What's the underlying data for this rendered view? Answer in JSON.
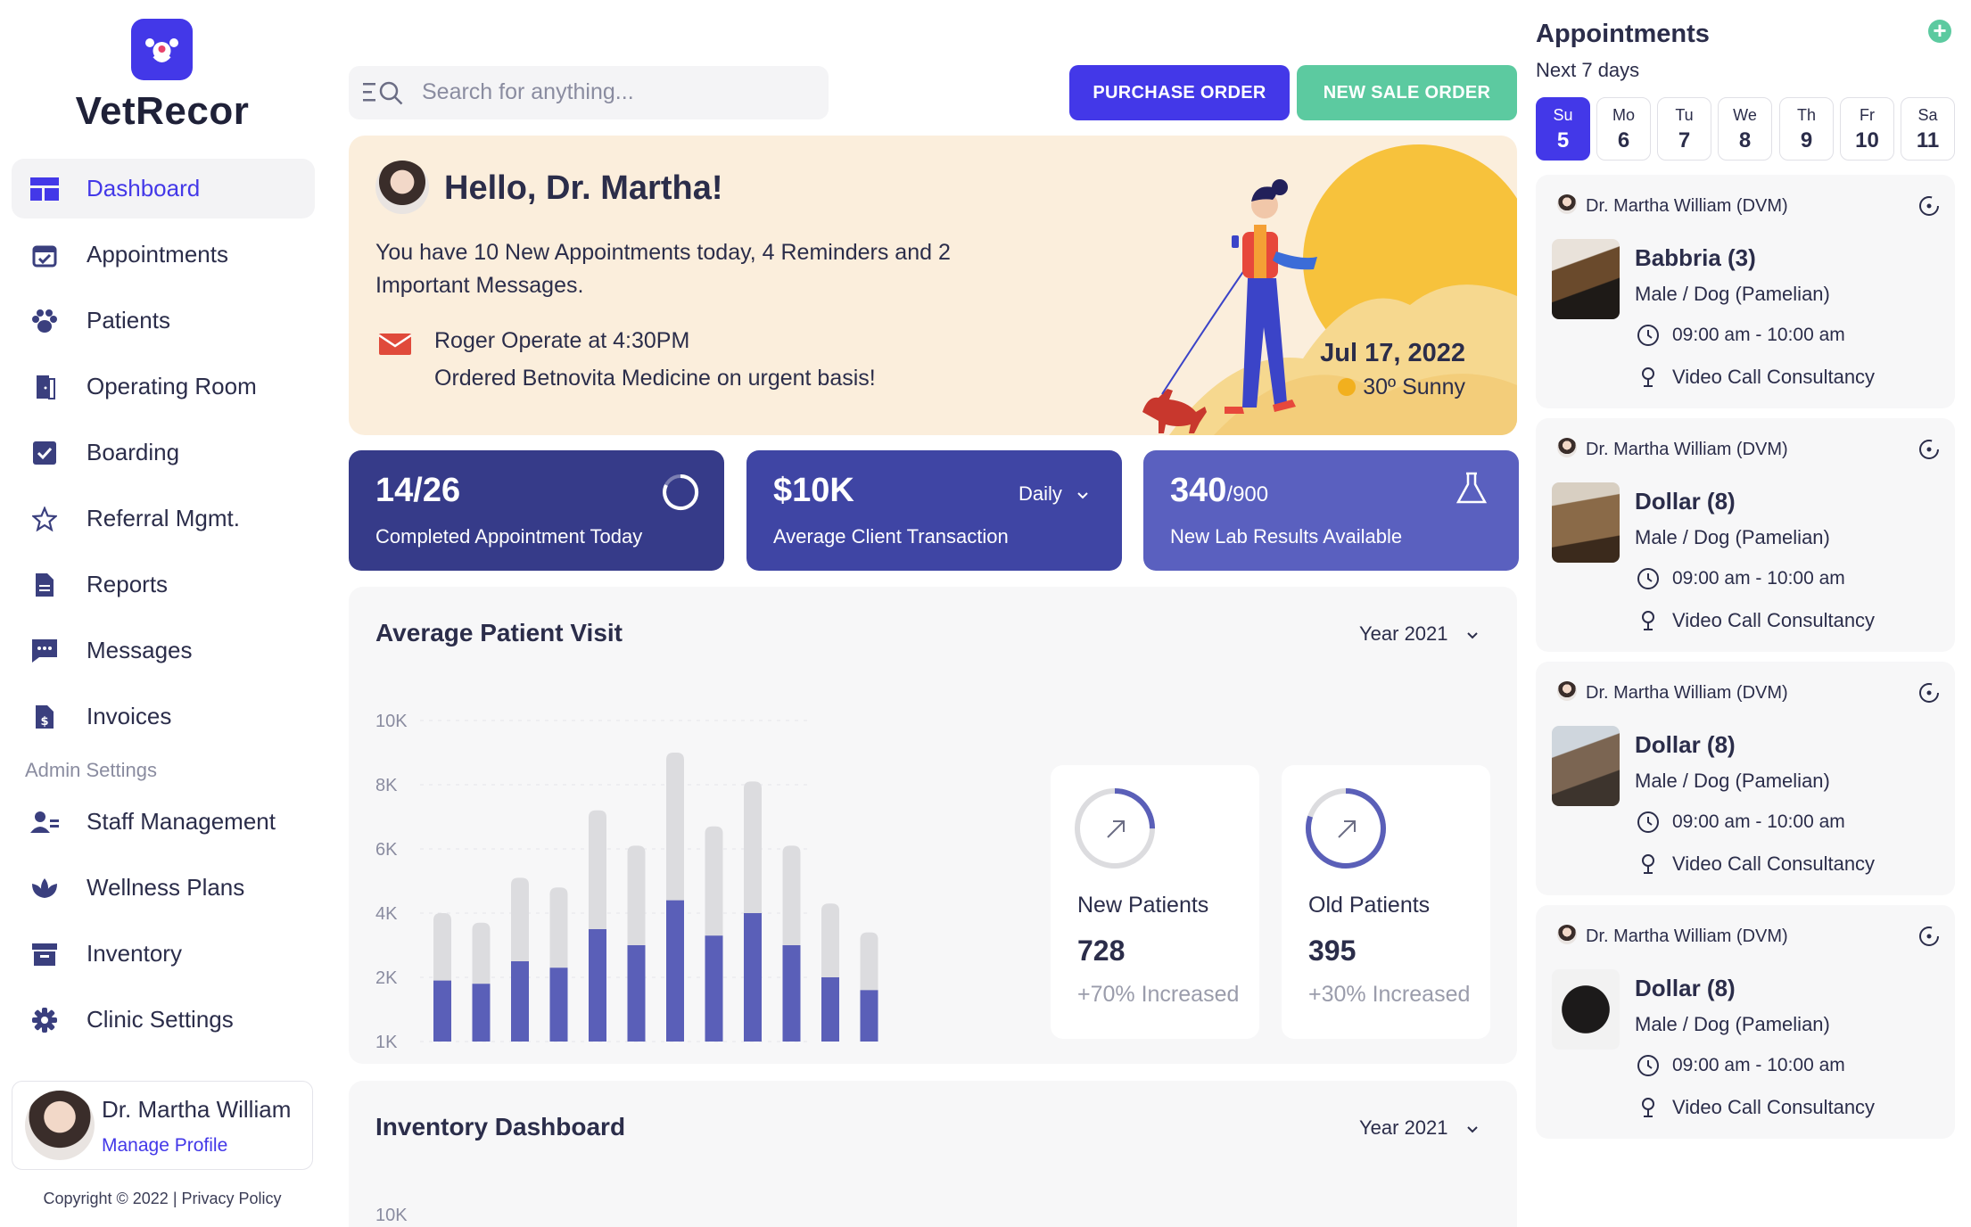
{
  "app": {
    "brand": "VetRecor"
  },
  "sidebar": {
    "items": [
      {
        "label": "Dashboard",
        "icon": "dashboard-icon",
        "active": true
      },
      {
        "label": "Appointments",
        "icon": "calendar-check-icon"
      },
      {
        "label": "Patients",
        "icon": "paw-icon"
      },
      {
        "label": "Operating Room",
        "icon": "door-icon"
      },
      {
        "label": "Boarding",
        "icon": "checkbox-icon"
      },
      {
        "label": "Referral Mgmt.",
        "icon": "star-icon"
      }
    ],
    "items2": [
      {
        "label": "Reports",
        "icon": "document-icon"
      },
      {
        "label": "Messages",
        "icon": "chat-icon"
      },
      {
        "label": "Invoices",
        "icon": "invoice-icon"
      }
    ],
    "admin_title": "Admin Settings",
    "admin_items": [
      {
        "label": "Staff Management",
        "icon": "staff-icon"
      },
      {
        "label": "Wellness Plans",
        "icon": "lotus-icon"
      },
      {
        "label": "Inventory",
        "icon": "archive-icon"
      },
      {
        "label": "Clinic Settings",
        "icon": "gear-icon"
      }
    ],
    "profile": {
      "name": "Dr. Martha William",
      "link": "Manage Profile"
    },
    "copyright": "Copyright © 2022 | Privacy Policy"
  },
  "topbar": {
    "search_placeholder": "Search for anything...",
    "purchase_label": "PURCHASE ORDER",
    "sale_label": "NEW SALE ORDER"
  },
  "hello": {
    "title": "Hello, Dr. Martha!",
    "message": "You have 10 New Appointments today, 4 Reminders and 2 Important Messages.",
    "line1": "Roger Operate at 4:30PM",
    "line2": "Ordered Betnovita Medicine on urgent basis!",
    "date": "Jul 17, 2022",
    "weather": "30º Sunny"
  },
  "stats": [
    {
      "value": "14/26",
      "label": "Completed Appointment Today",
      "color": "#363b89"
    },
    {
      "value": "$10K",
      "label": "Average Client Transaction",
      "period": "Daily",
      "color": "#3f45a4"
    },
    {
      "value": "340",
      "suffix": "/900",
      "label": "New Lab Results Available",
      "color": "#5a60bf"
    }
  ],
  "visit_panel": {
    "title": "Average Patient Visit",
    "year": "Year 2021",
    "new_patients": {
      "label": "New Patients",
      "value": "728",
      "sub": "+70% Increased",
      "progress": 0.25
    },
    "old_patients": {
      "label": "Old Patients",
      "value": "395",
      "sub": "+30% Increased",
      "progress": 0.8
    }
  },
  "chart_data": {
    "type": "bar",
    "y_ticks": [
      "10K",
      "8K",
      "6K",
      "4K",
      "2K",
      "1K"
    ],
    "ylim": [
      0,
      10000
    ],
    "series": [
      {
        "values": [
          4000,
          3700,
          5100,
          4800,
          7200,
          6100,
          9000,
          6700,
          8100,
          6100,
          4300,
          3400
        ]
      },
      {
        "values": [
          1900,
          1800,
          2500,
          2300,
          3500,
          3000,
          4400,
          3300,
          4000,
          3000,
          2000,
          1600
        ]
      }
    ],
    "colors": [
      "#dcdcdf",
      "#5a5fb8"
    ]
  },
  "inventory_panel": {
    "title": "Inventory Dashboard",
    "year": "Year 2021",
    "first_tick": "10K"
  },
  "appointments": {
    "title": "Appointments",
    "subtitle": "Next 7 days",
    "days": [
      {
        "name": "Su",
        "num": "5",
        "active": true
      },
      {
        "name": "Mo",
        "num": "6"
      },
      {
        "name": "Tu",
        "num": "7"
      },
      {
        "name": "We",
        "num": "8"
      },
      {
        "name": "Th",
        "num": "9"
      },
      {
        "name": "Fr",
        "num": "10"
      },
      {
        "name": "Sa",
        "num": "11"
      }
    ],
    "cards": [
      {
        "doctor": "Dr. Martha William (DVM)",
        "pet": "Babbria (3)",
        "breed": "Male / Dog (Pamelian)",
        "time": "09:00 am - 10:00 am",
        "type": "Video Call Consultancy"
      },
      {
        "doctor": "Dr. Martha William (DVM)",
        "pet": "Dollar (8)",
        "breed": "Male / Dog (Pamelian)",
        "time": "09:00 am - 10:00 am",
        "type": "Video Call Consultancy"
      },
      {
        "doctor": "Dr. Martha William (DVM)",
        "pet": "Dollar (8)",
        "breed": "Male / Dog (Pamelian)",
        "time": "09:00 am - 10:00 am",
        "type": "Video Call Consultancy"
      },
      {
        "doctor": "Dr. Martha William (DVM)",
        "pet": "Dollar (8)",
        "breed": "Male / Dog (Pamelian)",
        "time": "09:00 am - 10:00 am",
        "type": "Video Call Consultancy"
      }
    ]
  }
}
